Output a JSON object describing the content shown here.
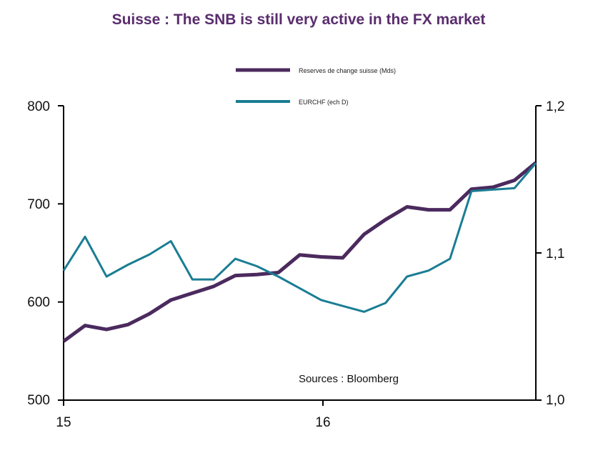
{
  "chart_data": {
    "type": "line",
    "title": "Suisse : The SNB is still very active in the FX market",
    "x_tick_labels": [
      "15",
      "16"
    ],
    "y_left": {
      "lim": [
        500,
        800
      ],
      "ticks": [
        "500",
        "600",
        "700",
        "800"
      ]
    },
    "y_right": {
      "lim": [
        1.0,
        1.2
      ],
      "ticks": [
        "1,0",
        "1,1",
        "1,2"
      ]
    },
    "legend_placement": "top-center",
    "source": "Sources : Bloomberg",
    "series": [
      {
        "name": "Reserves de change suisse (Mds)",
        "axis": "left",
        "color": "#4b2a5e",
        "values": [
          560,
          576,
          572,
          577,
          588,
          602,
          609,
          616,
          627,
          628,
          630,
          648,
          646,
          645,
          669,
          684,
          697,
          694,
          694,
          715,
          717,
          724,
          742
        ]
      },
      {
        "name": "EURCHF (ech D)",
        "axis": "right",
        "color": "#1a7d93",
        "values": [
          1.088,
          1.111,
          1.084,
          1.092,
          1.099,
          1.108,
          1.082,
          1.082,
          1.096,
          1.091,
          1.084,
          1.076,
          1.068,
          1.064,
          1.06,
          1.066,
          1.084,
          1.088,
          1.096,
          1.142,
          1.143,
          1.144,
          1.161
        ]
      }
    ]
  }
}
